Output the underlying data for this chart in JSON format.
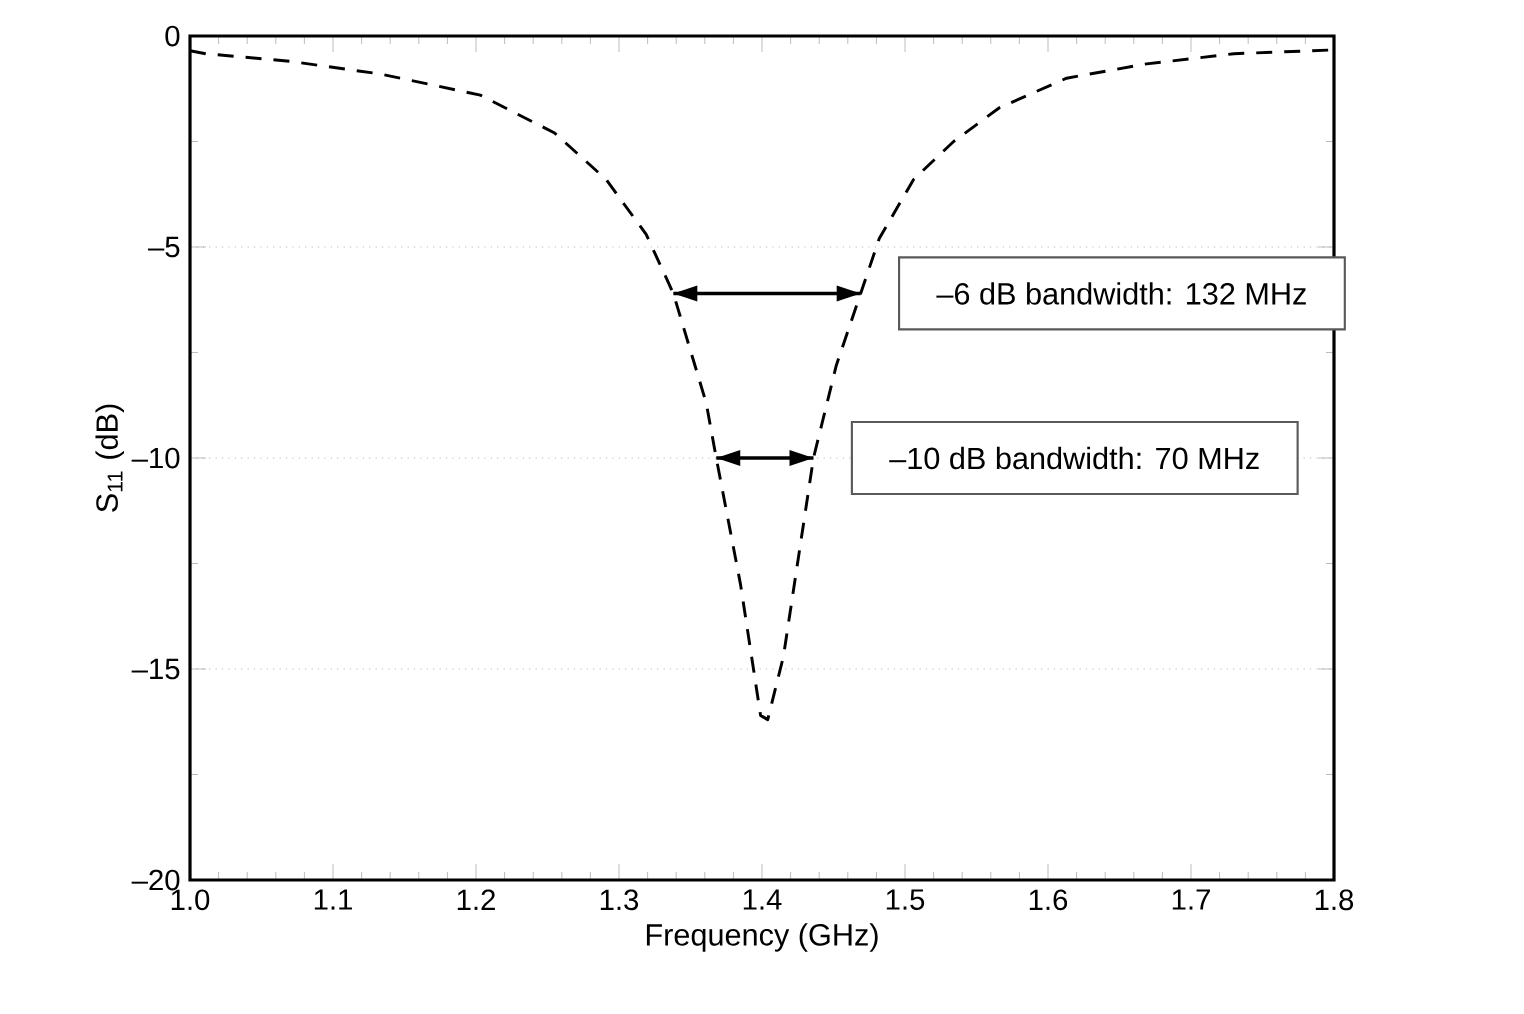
{
  "chart_data": {
    "type": "line",
    "xlabel": "Frequency (GHz)",
    "ylabel": "S$_{11}$ (dB)",
    "xlim": [
      1.0,
      1.8
    ],
    "ylim": [
      -20,
      0
    ],
    "xticks": [
      {
        "value": 1.0,
        "label": "1.0"
      },
      1.1,
      1.2,
      1.3,
      1.4,
      1.5,
      1.6,
      1.7,
      1.8
    ],
    "yticks": [
      {
        "value": -20,
        "label": "–20"
      },
      {
        "value": -15,
        "label": "–15"
      },
      {
        "value": -10,
        "label": "–10"
      },
      {
        "value": -5,
        "label": "–5"
      },
      0
    ],
    "grid": "y",
    "series": [
      {
        "color": "#000000",
        "line_style": "dashed",
        "x": [
          1.0,
          1.011,
          1.07,
          1.133,
          1.203,
          1.255,
          1.291,
          1.319,
          1.338,
          1.361,
          1.368,
          1.385,
          1.399,
          1.404,
          1.415,
          1.436,
          1.452,
          1.469,
          1.482,
          1.506,
          1.534,
          1.566,
          1.613,
          1.669,
          1.73,
          1.8
        ],
        "values": [
          -0.35,
          -0.42,
          -0.6,
          -0.9,
          -1.4,
          -2.3,
          -3.4,
          -4.7,
          -6.1,
          -8.7,
          -10,
          -13,
          -16.1,
          -16.2,
          -14.7,
          -10,
          -7.8,
          -6.1,
          -4.8,
          -3.4,
          -2.5,
          -1.7,
          -1.0,
          -0.66,
          -0.42,
          -0.33
        ]
      },
      {
        "color": "#000000",
        "line_style": "solid",
        "x": [
          1.338,
          1.469
        ],
        "values": [
          -6.1,
          -6.1
        ]
      },
      {
        "color": "#000000",
        "line_style": "solid",
        "x": [
          1.368,
          1.436
        ],
        "values": [
          -10,
          -10
        ]
      }
    ],
    "annotations": [
      {
        "text": "–6 dB bandwidth: 132 MHz",
        "x": 1.469,
        "y": -6.1
      },
      {
        "text": "–10 dB bandwidth: 70 MHz",
        "x": 1.436,
        "y": -10
      }
    ]
  }
}
